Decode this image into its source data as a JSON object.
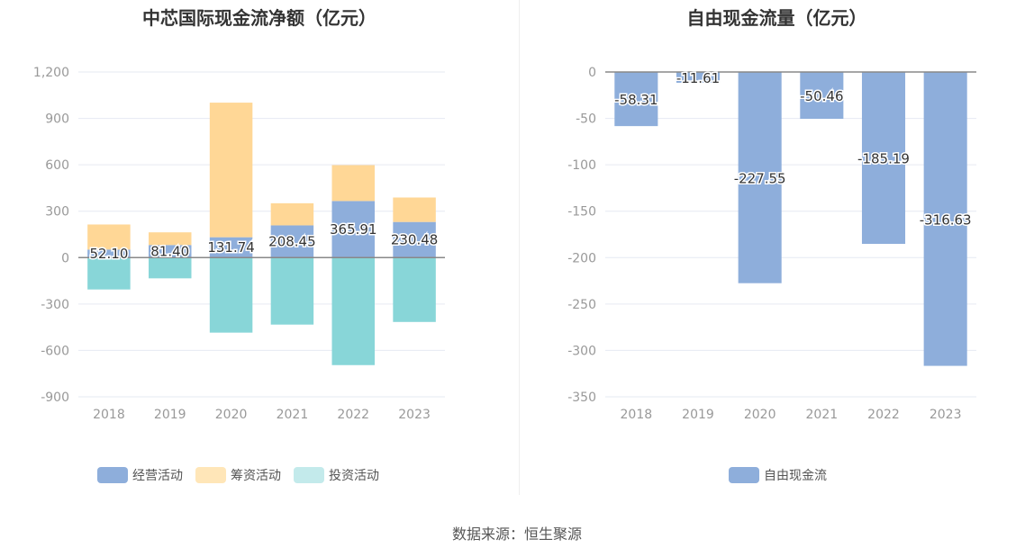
{
  "chart_data": [
    {
      "type": "bar",
      "stacked": true,
      "title": "中芯国际现金流净额（亿元）",
      "categories": [
        "2018",
        "2019",
        "2020",
        "2021",
        "2022",
        "2023"
      ],
      "ylim": [
        -900,
        1200
      ],
      "yticks": [
        "1,200",
        "900",
        "600",
        "300",
        "0",
        "-300",
        "-600",
        "-900"
      ],
      "ytick_values": [
        1200,
        900,
        600,
        300,
        0,
        -300,
        -600,
        -900
      ],
      "grid": true,
      "legend": "bottom",
      "series": [
        {
          "name": "经营活动",
          "color": "#8eaedb",
          "values": [
            52.1,
            81.4,
            131.74,
            208.45,
            365.91,
            230.48
          ],
          "labels": [
            "52.10",
            "81.40",
            "131.74",
            "208.45",
            "365.91",
            "230.48"
          ]
        },
        {
          "name": "筹资活动",
          "color": "#ffd796",
          "values": [
            162,
            82,
            870,
            143,
            232,
            158
          ]
        },
        {
          "name": "投资活动",
          "color": "#88d6d8",
          "values": [
            -206,
            -134,
            -485,
            -433,
            -695,
            -416
          ]
        }
      ]
    },
    {
      "type": "bar",
      "title": "自由现金流量（亿元）",
      "categories": [
        "2018",
        "2019",
        "2020",
        "2021",
        "2022",
        "2023"
      ],
      "ylim": [
        -350,
        0
      ],
      "yticks": [
        "0",
        "-50",
        "-100",
        "-150",
        "-200",
        "-250",
        "-300",
        "-350"
      ],
      "ytick_values": [
        0,
        -50,
        -100,
        -150,
        -200,
        -250,
        -300,
        -350
      ],
      "grid": true,
      "legend": "bottom",
      "series": [
        {
          "name": "自由现金流",
          "color": "#8eaedb",
          "values": [
            -58.31,
            -11.61,
            -227.55,
            -50.46,
            -185.19,
            -316.63
          ],
          "labels": [
            "-58.31",
            "-11.61",
            "-227.55",
            "-50.46",
            "-185.19",
            "-316.63"
          ]
        }
      ]
    }
  ],
  "legend_colors": {
    "经营活动": "#8eaedb",
    "筹资活动": "#ffe6b8",
    "投资活动": "#c3eaeb",
    "自由现金流": "#8eaedb"
  },
  "footer": "数据来源：恒生聚源"
}
